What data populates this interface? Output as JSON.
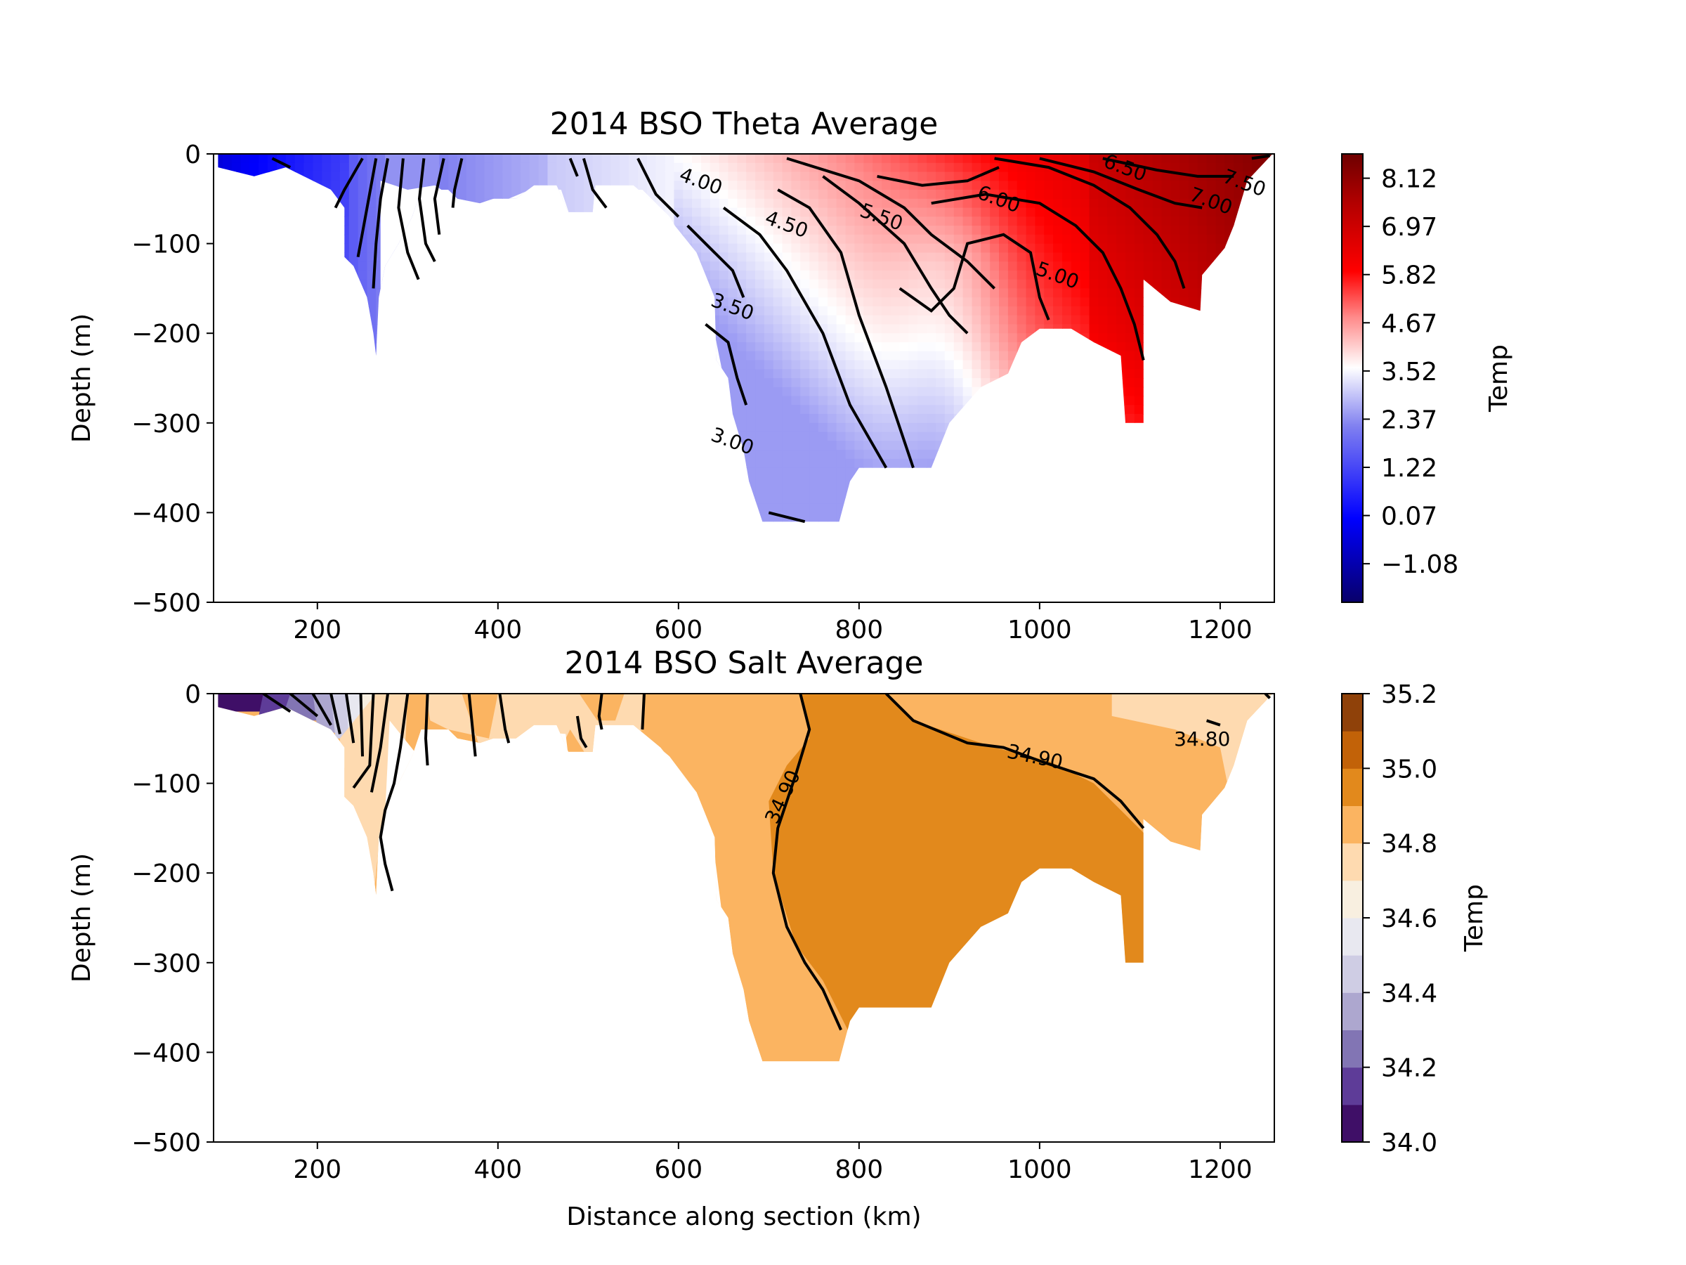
{
  "chart_data": [
    {
      "type": "contour",
      "title": "2014 BSO Theta Average",
      "xlabel": "",
      "ylabel": "Depth (m)",
      "xlim": [
        85,
        1260
      ],
      "ylim": [
        -500,
        0
      ],
      "xticks": [
        200,
        400,
        600,
        800,
        1000,
        1200
      ],
      "yticks": [
        0,
        -100,
        -200,
        -300,
        -400,
        -500
      ],
      "colorbar": {
        "label": "Temp",
        "range": [
          -2.0,
          8.7
        ],
        "ticks": [
          "8.12",
          "6.97",
          "5.82",
          "4.67",
          "3.52",
          "2.37",
          "1.22",
          "0.07",
          "−1.08"
        ],
        "tick_values": [
          8.12,
          6.97,
          5.82,
          4.67,
          3.52,
          2.37,
          1.22,
          0.07,
          -1.08
        ],
        "colors": [
          "#08006a",
          "#0000ff",
          "#8080f0",
          "#ffffff",
          "#ff8a8a",
          "#ff0000",
          "#b40000",
          "#6e0000"
        ],
        "color_stops": [
          -2.0,
          0.0,
          2.2,
          3.6,
          4.8,
          5.9,
          7.5,
          8.7
        ]
      },
      "contour_labels": [
        {
          "text": "4.00",
          "x": 625,
          "y": -30
        },
        {
          "text": "4.50",
          "x": 720,
          "y": -78
        },
        {
          "text": "5.50",
          "x": 825,
          "y": -70
        },
        {
          "text": "6.00",
          "x": 955,
          "y": -50
        },
        {
          "text": "6.50",
          "x": 1095,
          "y": -15
        },
        {
          "text": "7.00",
          "x": 1190,
          "y": -52
        },
        {
          "text": "7.50",
          "x": 1227,
          "y": -32
        },
        {
          "text": "5.00",
          "x": 1020,
          "y": -135
        },
        {
          "text": "3.50",
          "x": 660,
          "y": -170
        },
        {
          "text": "3.00",
          "x": 660,
          "y": -320
        }
      ]
    },
    {
      "type": "contour",
      "title": "2014 BSO Salt Average",
      "xlabel": "Distance along section (km)",
      "ylabel": "Depth (m)",
      "xlim": [
        85,
        1260
      ],
      "ylim": [
        -500,
        0
      ],
      "xticks": [
        200,
        400,
        600,
        800,
        1000,
        1200
      ],
      "yticks": [
        0,
        -100,
        -200,
        -300,
        -400,
        -500
      ],
      "colorbar": {
        "label": "Temp",
        "range": [
          34.0,
          35.2
        ],
        "ticks": [
          "35.2",
          "35.0",
          "34.8",
          "34.6",
          "34.4",
          "34.2",
          "34.0"
        ],
        "tick_values": [
          35.2,
          35.0,
          34.8,
          34.6,
          34.4,
          34.2,
          34.0
        ],
        "levels": [
          34.0,
          34.1,
          34.2,
          34.3,
          34.4,
          34.5,
          34.6,
          34.7,
          34.8,
          34.9,
          35.0,
          35.1,
          35.2
        ],
        "level_colors": [
          "#3f0f67",
          "#5e3c98",
          "#8275b4",
          "#ada7cf",
          "#cfcde4",
          "#e8e8f0",
          "#f8efe0",
          "#fedab0",
          "#fbb461",
          "#e2891c",
          "#c26208",
          "#8f4109"
        ]
      },
      "contour_labels": [
        {
          "text": "34.90",
          "x": 715,
          "y": -115
        },
        {
          "text": "34.90",
          "x": 995,
          "y": -70
        },
        {
          "text": "34.80",
          "x": 1180,
          "y": -50
        }
      ]
    }
  ]
}
